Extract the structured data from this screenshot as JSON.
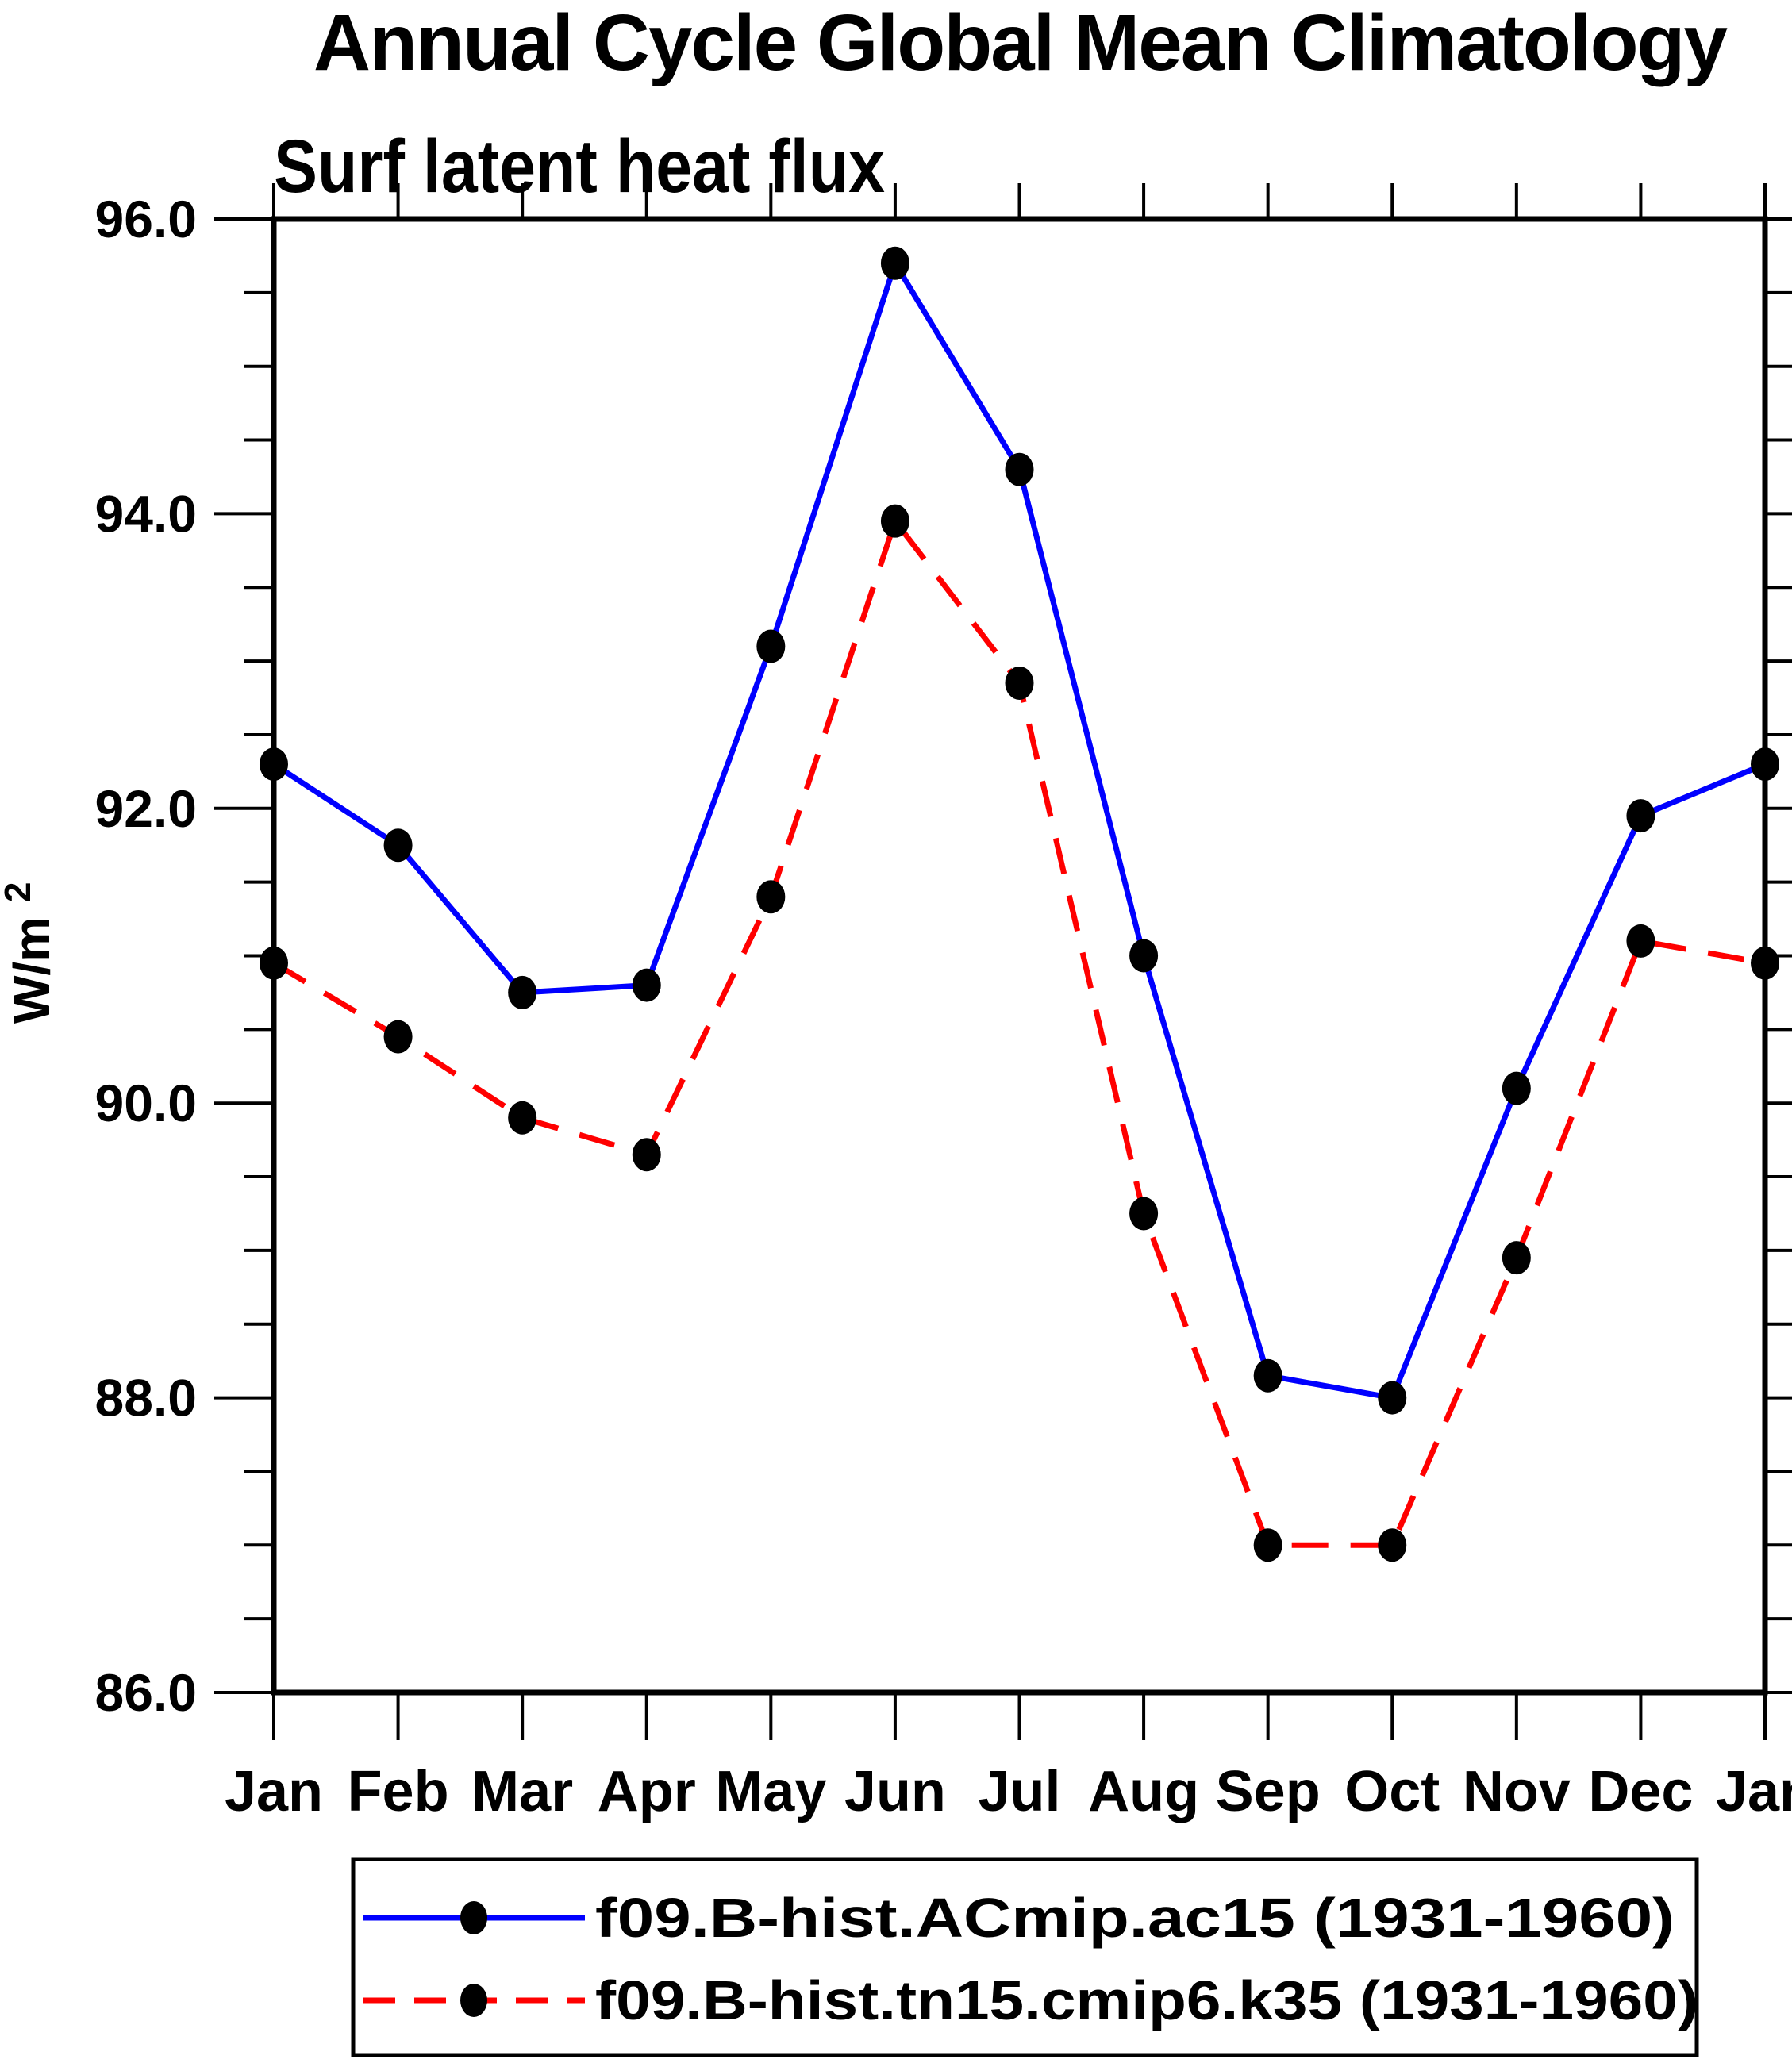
{
  "title": "Annual Cycle Global Mean Climatology",
  "subtitle": "Surf latent heat flux",
  "ylabel": {
    "text": "W/m",
    "exponent": "2"
  },
  "chart_data": {
    "type": "line",
    "categories": [
      "Jan",
      "Feb",
      "Mar",
      "Apr",
      "May",
      "Jun",
      "Jul",
      "Aug",
      "Sep",
      "Oct",
      "Nov",
      "Dec",
      "Jan"
    ],
    "series": [
      {
        "name": "f09.B-hist.ACmip.ac15 (1931-1960)",
        "color": "#0000ff",
        "line_style": "solid",
        "marker": "filled-circle",
        "marker_color": "#000000",
        "values": [
          92.3,
          91.75,
          90.75,
          90.8,
          93.1,
          95.7,
          94.3,
          91.0,
          88.15,
          88.0,
          90.1,
          91.95,
          92.3
        ]
      },
      {
        "name": "f09.B-hist.tn15.cmip6.k35 (1931-1960)",
        "color": "#ff0000",
        "line_style": "dashed",
        "marker": "filled-circle",
        "marker_color": "#000000",
        "values": [
          90.95,
          90.45,
          89.9,
          89.65,
          91.4,
          93.95,
          92.85,
          89.25,
          87.0,
          87.0,
          88.95,
          91.1,
          90.95
        ]
      }
    ],
    "ylim": [
      86.0,
      96.0
    ],
    "ytick_step": 2.0,
    "yminor_step": 0.5,
    "ytick_labels": [
      "96.0",
      "94.0",
      "92.0",
      "90.0",
      "88.0",
      "86.0"
    ],
    "xlabel": "",
    "grid": false,
    "legend_position": "bottom"
  }
}
